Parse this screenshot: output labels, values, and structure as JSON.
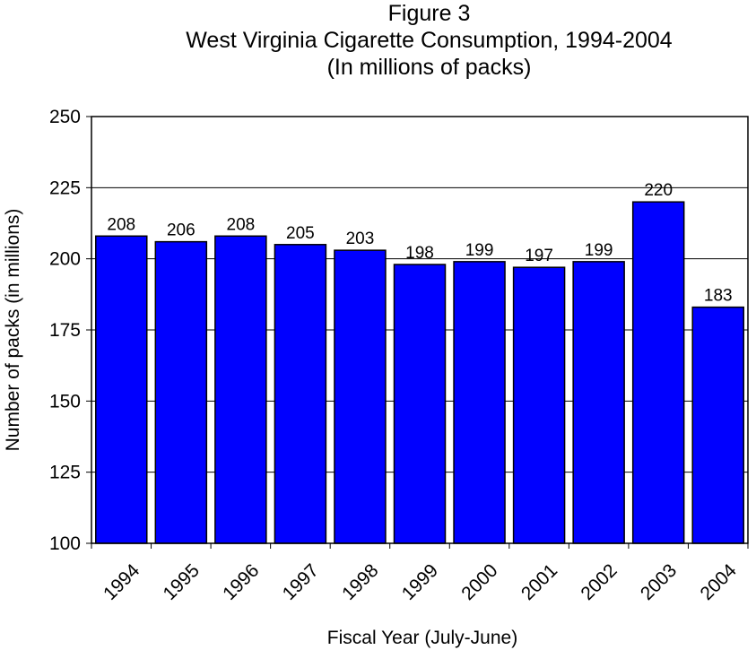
{
  "title": {
    "line1": "Figure 3",
    "line2": "West Virginia Cigarette Consumption, 1994-2004",
    "line3": "(In millions of packs)"
  },
  "chart_data": {
    "type": "bar",
    "title": "West Virginia Cigarette Consumption, 1994-2004",
    "subtitle": "(In millions of packs)",
    "xlabel": "Fiscal Year (July-June)",
    "ylabel": "Number of packs (in millions)",
    "categories": [
      "1994",
      "1995",
      "1996",
      "1997",
      "1998",
      "1999",
      "2000",
      "2001",
      "2002",
      "2003",
      "2004"
    ],
    "values": [
      208,
      206,
      208,
      205,
      203,
      198,
      199,
      197,
      199,
      220,
      183
    ],
    "ylim": [
      100,
      250
    ],
    "yticks": [
      100,
      125,
      150,
      175,
      200,
      225,
      250
    ],
    "grid": true,
    "legend": "none",
    "colors": {
      "bar": "#0000ff",
      "bar_edge": "#000000",
      "grid": "#000000"
    }
  }
}
